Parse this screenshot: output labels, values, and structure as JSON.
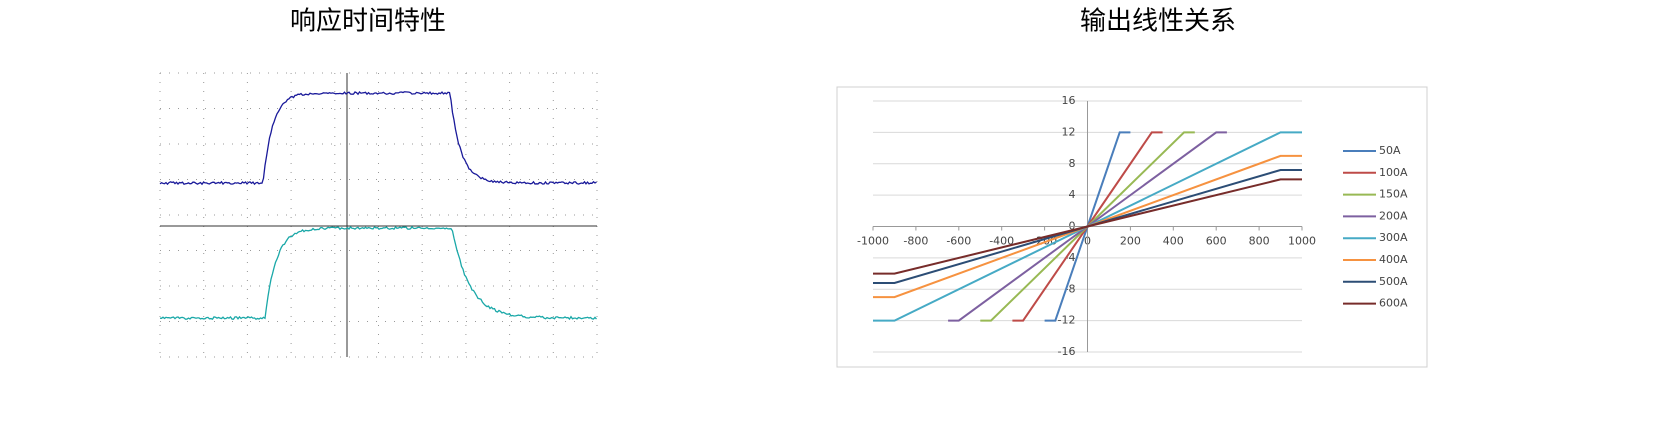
{
  "oscilloscope": {
    "title": "响应时间特性"
  },
  "chart_data": {
    "type": "line",
    "title": "输出线性关系",
    "xlim": [
      -1000,
      1000
    ],
    "xticks": [
      -1000,
      -800,
      -600,
      -400,
      -200,
      0,
      200,
      400,
      600,
      800,
      1000
    ],
    "ylim": [
      -16,
      16
    ],
    "yticks": [
      -16,
      -12,
      -8,
      -4,
      0,
      4,
      8,
      12,
      16
    ],
    "grid": true,
    "series": [
      {
        "name": "50A",
        "color": "#4a7ebb",
        "x": [
          -200,
          -150,
          0,
          150,
          200
        ],
        "values": [
          -12,
          -12,
          0,
          12,
          12
        ]
      },
      {
        "name": "100A",
        "color": "#be4b48",
        "x": [
          -350,
          -300,
          0,
          300,
          350
        ],
        "values": [
          -12,
          -12,
          0,
          12,
          12
        ]
      },
      {
        "name": "150A",
        "color": "#98b954",
        "x": [
          -500,
          -450,
          0,
          450,
          500
        ],
        "values": [
          -12,
          -12,
          0,
          12,
          12
        ]
      },
      {
        "name": "200A",
        "color": "#7d60a0",
        "x": [
          -650,
          -600,
          0,
          600,
          650
        ],
        "values": [
          -12,
          -12,
          0,
          12,
          12
        ]
      },
      {
        "name": "300A",
        "color": "#46aac5",
        "x": [
          -1000,
          -900,
          0,
          900,
          1000
        ],
        "values": [
          -12,
          -12,
          0,
          12,
          12
        ]
      },
      {
        "name": "400A",
        "color": "#f69240",
        "x": [
          -1000,
          -900,
          0,
          900,
          1000
        ],
        "values": [
          -9,
          -9,
          0,
          9,
          9
        ]
      },
      {
        "name": "500A",
        "color": "#2c4d75",
        "x": [
          -1000,
          -900,
          0,
          900,
          1000
        ],
        "values": [
          -7.2,
          -7.2,
          0,
          7.2,
          7.2
        ]
      },
      {
        "name": "600A",
        "color": "#772c2a",
        "x": [
          -1000,
          -900,
          0,
          900,
          1000
        ],
        "values": [
          -6,
          -6,
          0,
          6,
          6
        ]
      }
    ]
  }
}
